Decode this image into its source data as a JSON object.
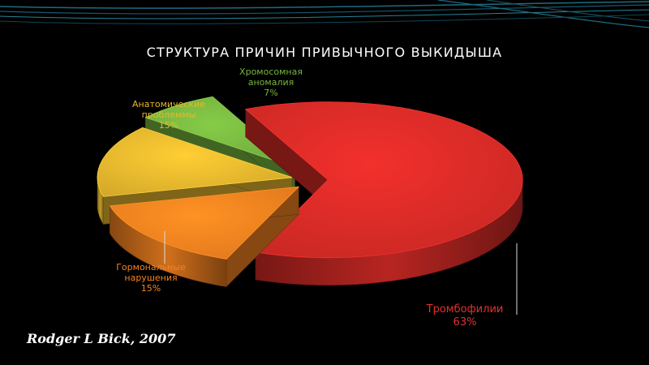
{
  "slide": {
    "title": "СТРУКТУРА ПРИЧИН ПРИВЫЧНОГО ВЫКИДЫША",
    "citation": "Rodger L Bick, 2007"
  },
  "chart_data": {
    "type": "pie",
    "title": "СТРУКТУРА ПРИЧИН ПРИВЫЧНОГО ВЫКИДЫША",
    "exploded": true,
    "three_d": true,
    "slices": [
      {
        "label": "Тромбофилии",
        "value": 63,
        "value_label": "63%",
        "color": "#d92b27"
      },
      {
        "label": "Гормональные нарушения",
        "label_lines": [
          "Гормональные",
          "нарушения"
        ],
        "value": 15,
        "value_label": "15%",
        "color": "#f58220"
      },
      {
        "label": "Анатомические проблеммы",
        "label_lines": [
          "Анатомические",
          "проблеммы"
        ],
        "value": 15,
        "value_label": "15%",
        "color": "#e6b82e"
      },
      {
        "label": "Хромосомная аномалия",
        "label_lines": [
          "Хромосомная",
          "аномалия"
        ],
        "value": 7,
        "value_label": "7%",
        "color": "#78b640"
      }
    ]
  },
  "colors": {
    "background": "#000000",
    "title": "#ffffff",
    "label_thrombophilia": "#e2322d",
    "label_hormonal": "#f58220",
    "label_anatomical": "#e6b82e",
    "label_chromosomal": "#78b640",
    "deco_lines": "#1d6b80"
  }
}
